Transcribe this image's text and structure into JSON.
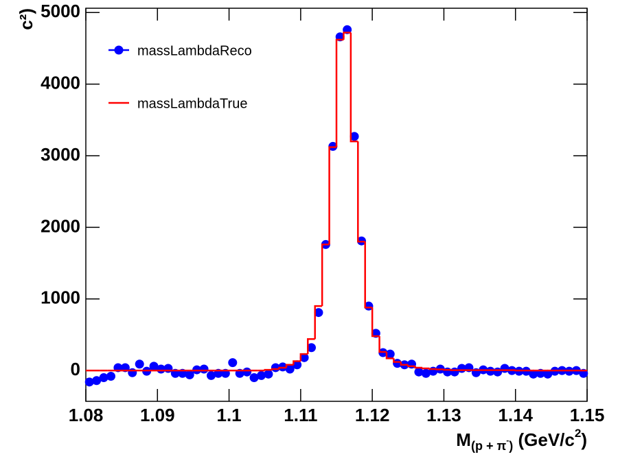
{
  "chart_data": {
    "type": "histogram",
    "y_label": "c²)",
    "x_label": [
      "M",
      "(p + π",
      "-",
      ")",
      " (GeV/c",
      "2",
      ")"
    ],
    "bins": [
      1.08,
      1.081,
      1.082,
      1.083,
      1.084,
      1.085,
      1.086,
      1.087,
      1.088,
      1.089,
      1.09,
      1.091,
      1.092,
      1.093,
      1.094,
      1.095,
      1.096,
      1.097,
      1.098,
      1.099,
      1.1,
      1.101,
      1.102,
      1.103,
      1.104,
      1.105,
      1.106,
      1.107,
      1.108,
      1.109,
      1.11,
      1.111,
      1.112,
      1.113,
      1.114,
      1.115,
      1.116,
      1.117,
      1.118,
      1.119,
      1.12,
      1.121,
      1.122,
      1.123,
      1.124,
      1.125,
      1.126,
      1.127,
      1.128,
      1.129,
      1.13,
      1.131,
      1.132,
      1.133,
      1.134,
      1.135,
      1.136,
      1.137,
      1.138,
      1.139,
      1.14,
      1.141,
      1.142,
      1.143,
      1.144,
      1.145,
      1.146,
      1.147,
      1.148,
      1.149,
      1.15
    ],
    "series": [
      {
        "name": "massLambdaReco",
        "color": "#0000ff",
        "style": "points",
        "values": [
          -160,
          -140,
          -100,
          -80,
          40,
          40,
          -30,
          90,
          -10,
          60,
          20,
          30,
          -40,
          -40,
          -60,
          10,
          20,
          -70,
          -40,
          -40,
          110,
          -40,
          -20,
          -100,
          -70,
          -50,
          40,
          50,
          20,
          80,
          180,
          320,
          810,
          1760,
          3130,
          4660,
          4760,
          3270,
          1810,
          900,
          520,
          250,
          230,
          100,
          80,
          90,
          -20,
          -40,
          -10,
          20,
          -20,
          -20,
          30,
          40,
          -30,
          10,
          -10,
          -20,
          30,
          0,
          -10,
          -10,
          -50,
          -40,
          -50,
          -10,
          0,
          -10,
          0,
          -40
        ]
      },
      {
        "name": "massLambdaTrue",
        "color": "#ff0000",
        "style": "step",
        "values": [
          0,
          0,
          0,
          0,
          0,
          0,
          0,
          0,
          0,
          0,
          0,
          0,
          0,
          0,
          0,
          0,
          0,
          0,
          0,
          0,
          0,
          0,
          0,
          0,
          0,
          10,
          20,
          40,
          80,
          130,
          230,
          440,
          900,
          1760,
          3120,
          4620,
          4720,
          3200,
          1800,
          880,
          480,
          260,
          170,
          120,
          80,
          60,
          40,
          30,
          20,
          15,
          10,
          5,
          5,
          5,
          5,
          5,
          5,
          5,
          5,
          5,
          0,
          0,
          0,
          0,
          0,
          0,
          0,
          0,
          0,
          0
        ]
      }
    ],
    "xlim": [
      1.08,
      1.15
    ],
    "xticks": [
      1.08,
      1.09,
      1.1,
      1.11,
      1.12,
      1.13,
      1.14,
      1.15
    ],
    "ylim": [
      -430,
      5060
    ],
    "yticks": [
      0,
      1000,
      2000,
      3000,
      4000,
      5000
    ],
    "legend": "top-left"
  }
}
